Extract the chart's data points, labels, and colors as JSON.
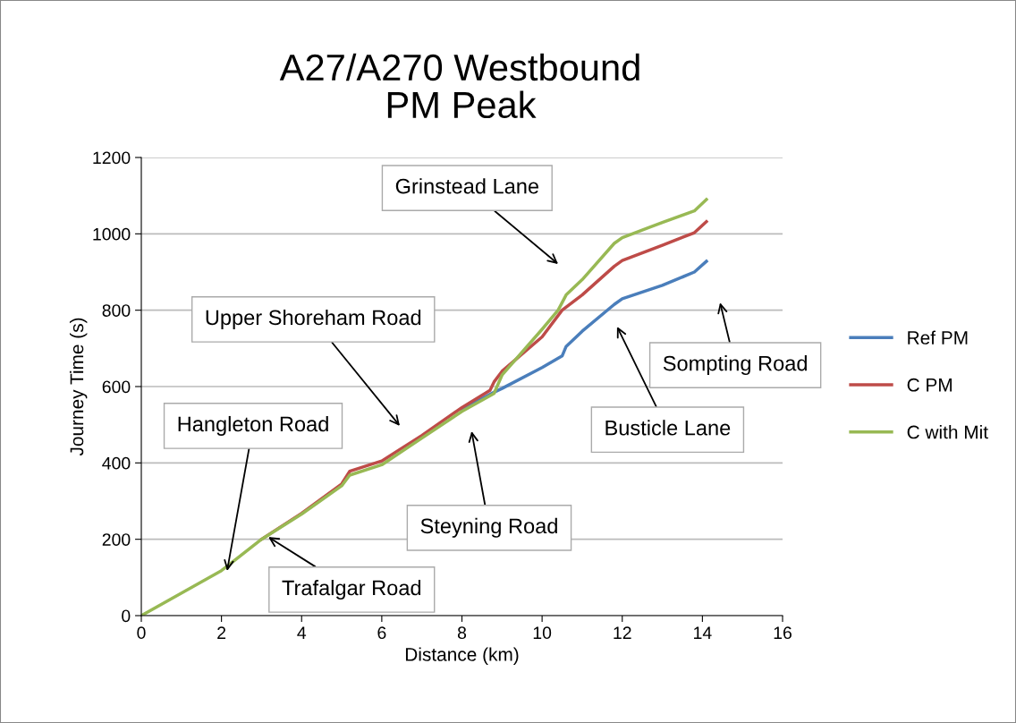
{
  "chart_data": {
    "type": "line",
    "title": "A27/A270 Westbound\nPM Peak",
    "xlabel": "Distance (km)",
    "ylabel": "Journey Time (s)",
    "xlim": [
      0,
      16
    ],
    "xticks": [
      0,
      2,
      4,
      6,
      8,
      10,
      12,
      14,
      16
    ],
    "ylim": [
      0,
      1200
    ],
    "yticks": [
      0,
      200,
      400,
      600,
      800,
      1000,
      1200
    ],
    "grid": "y",
    "legend": "right",
    "marker": "none",
    "line_style": "solid",
    "series": [
      {
        "name": "Ref PM",
        "color": "#4a7ebb",
        "x": [
          8,
          8.8,
          9,
          10,
          10.5,
          10.6,
          11,
          11.8,
          12,
          13,
          13.8,
          14.1
        ],
        "values": [
          540,
          585,
          595,
          650,
          680,
          705,
          745,
          815,
          830,
          865,
          900,
          928
        ]
      },
      {
        "name": "C PM",
        "color": "#be4b48",
        "x": [
          3,
          4,
          5,
          5.2,
          6,
          7,
          8,
          8.7,
          8.8,
          9,
          10,
          10.5,
          11,
          11.8,
          12,
          13,
          13.8,
          14.1
        ],
        "values": [
          200,
          268,
          345,
          378,
          405,
          472,
          545,
          590,
          612,
          640,
          730,
          800,
          840,
          915,
          930,
          970,
          1003,
          1032
        ]
      },
      {
        "name": "C with Mit",
        "color": "#98b954",
        "x": [
          0,
          2,
          3,
          4,
          5,
          5.2,
          6,
          7,
          8,
          8.8,
          9,
          10,
          10.4,
          10.6,
          11,
          11.8,
          12,
          13,
          13.8,
          14.1
        ],
        "values": [
          0,
          118,
          200,
          266,
          340,
          368,
          395,
          465,
          535,
          582,
          630,
          750,
          800,
          840,
          880,
          975,
          990,
          1030,
          1060,
          1090
        ]
      }
    ],
    "annotations": [
      {
        "text": "Hangleton Road",
        "x": 2.14,
        "y": 117
      },
      {
        "text": "Trafalgar Road",
        "x": 3.17,
        "y": 206
      },
      "Upper Shoreham Road",
      "Steyning Road",
      "Grinstead Lane",
      "Busticle Lane",
      "Sompting Road"
    ]
  }
}
